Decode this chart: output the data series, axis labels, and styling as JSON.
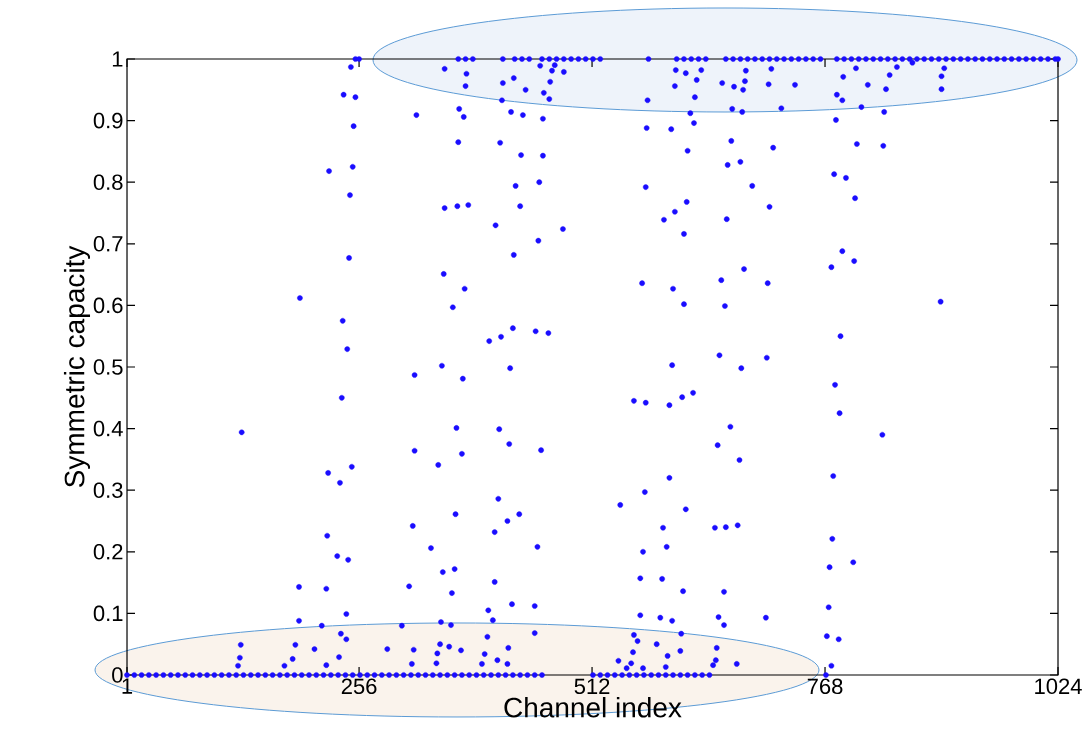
{
  "chart_data": {
    "type": "scatter",
    "xlabel": "Channel index",
    "ylabel": "Symmetric capacity",
    "xlim": [
      1,
      1024
    ],
    "ylim": [
      0,
      1
    ],
    "xticks": [
      1,
      256,
      512,
      768,
      1024
    ],
    "yticks": [
      0,
      0.1,
      0.2,
      0.3,
      0.4,
      0.5,
      0.6,
      0.7,
      0.8,
      0.9,
      1
    ],
    "marker": "circle",
    "series": [
      {
        "color": "#1a0dff",
        "x": [
          1,
          9,
          17,
          25,
          33,
          41,
          49,
          57,
          65,
          73,
          81,
          89,
          97,
          105,
          113,
          121,
          129,
          137,
          145,
          153,
          161,
          169,
          177,
          185,
          193,
          201,
          209,
          217,
          225,
          233,
          241,
          249,
          257,
          265,
          273,
          281,
          289,
          297,
          305,
          313,
          321,
          329,
          337,
          345,
          353,
          361,
          369,
          377,
          385,
          393,
          401,
          409,
          417,
          425,
          433,
          441,
          449,
          457,
          513,
          521,
          529,
          537,
          545,
          553,
          561,
          569,
          577,
          585,
          593,
          601,
          609,
          617,
          625,
          633,
          641,
          769
        ],
        "values": [
          0,
          0,
          0,
          0,
          0,
          0,
          0,
          0,
          0,
          0,
          0,
          0,
          0,
          0,
          0,
          0,
          0,
          0,
          0,
          0,
          0,
          0,
          0,
          0,
          0,
          0,
          0,
          0,
          0,
          0,
          0,
          0,
          0,
          0,
          0,
          0,
          0,
          0,
          0,
          0,
          0,
          0,
          0,
          0,
          0,
          0,
          0,
          0,
          0,
          0,
          0,
          0,
          0,
          0,
          0,
          0,
          0,
          0,
          0,
          0,
          0,
          0,
          0,
          0,
          0,
          0,
          0,
          0,
          0,
          0,
          0,
          0,
          0,
          0,
          0,
          0
        ]
      },
      {
        "color": "#1a0dff",
        "x": [
          252,
          256,
          365,
          373,
          381,
          414,
          427,
          435,
          443,
          457,
          465,
          473,
          481,
          489,
          497,
          505,
          513,
          521,
          574,
          605,
          613,
          621,
          629,
          637,
          659,
          667,
          675,
          683,
          691,
          699,
          707,
          715,
          723,
          731,
          739,
          747,
          755,
          763,
          781,
          789,
          797,
          805,
          813,
          821,
          829,
          837,
          845,
          853,
          861,
          869,
          877,
          885,
          893,
          901,
          909,
          917,
          925,
          933,
          941,
          949,
          957,
          965,
          973,
          981,
          989,
          997,
          1005,
          1013,
          1021,
          1024
        ],
        "values": [
          1,
          1,
          1,
          1,
          1,
          1,
          1,
          1,
          1,
          1,
          1,
          1,
          1,
          1,
          1,
          1,
          1,
          1,
          1,
          1,
          1,
          1,
          1,
          1,
          1,
          1,
          1,
          1,
          1,
          1,
          1,
          1,
          1,
          1,
          1,
          1,
          1,
          1,
          1,
          1,
          1,
          1,
          1,
          1,
          1,
          1,
          1,
          1,
          1,
          1,
          1,
          1,
          1,
          1,
          1,
          1,
          1,
          1,
          1,
          1,
          1,
          1,
          1,
          1,
          1,
          1,
          1,
          1,
          1,
          1
        ]
      },
      {
        "color": "#1a0dff",
        "x": [
          247,
          239,
          252,
          250,
          249,
          223,
          246,
          245,
          191,
          238,
          243,
          127,
          237,
          222,
          248,
          235,
          221,
          232,
          244,
          190,
          220,
          242,
          190,
          215,
          236,
          242,
          126,
          186,
          207,
          125,
          183,
          234,
          174,
          123,
          220,
          319,
          366,
          371,
          365,
          411,
          423,
          436,
          458,
          434,
          458,
          428,
          454,
          350,
          364,
          376,
          433,
          406,
          480,
          453,
          426,
          349,
          372,
          359,
          399,
          412,
          425,
          450,
          464,
          317,
          347,
          370,
          422,
          363,
          410,
          421,
          456,
          317,
          343,
          369,
          409,
          362,
          432,
          419,
          315,
          405,
          335,
          452,
          348,
          361,
          405,
          311,
          358,
          398,
          424,
          449,
          403,
          346,
          357,
          303,
          449,
          397,
          345,
          355,
          420,
          287,
          316,
          368,
          342,
          394,
          408,
          391,
          341,
          419,
          314,
          350,
          374,
          373,
          414,
          426,
          439,
          413,
          459,
          465,
          455,
          468,
          481,
          466,
          471,
          573,
          603,
          604,
          615,
          627,
          625,
          632,
          655,
          668,
          678,
          680,
          681,
          666,
          677,
          706,
          720,
          735,
          709,
          781,
          787,
          788,
          802,
          808,
          815,
          835,
          839,
          847,
          864,
          896,
          896,
          899,
          833,
          620,
          624,
          572,
          599,
          780,
          665,
          711,
          803,
          832,
          617,
          661,
          675,
          778,
          791,
          571,
          688,
          801,
          616,
          707,
          603,
          591,
          660,
          613,
          787,
          800,
          679,
          775,
          654,
          705,
          567,
          601,
          895,
          613,
          658,
          785,
          600,
          652,
          704,
          676,
          779,
          558,
          571,
          597,
          611,
          623,
          784,
          664,
          831,
          650,
          674,
          777,
          597,
          570,
          543,
          615,
          590,
          647,
          659,
          672,
          776,
          568,
          594,
          773,
          799,
          565,
          589,
          612,
          657,
          772,
          565,
          587,
          600,
          651,
          657,
          703,
          770,
          783,
          775,
          558,
          562,
          610,
          583,
          557,
          609,
          649,
          595,
          541,
          555,
          648,
          671,
          550,
          568,
          593,
          645
        ],
        "values": [
          0.987,
          0.942,
          0.938,
          0.891,
          0.825,
          0.818,
          0.779,
          0.677,
          0.612,
          0.575,
          0.529,
          0.394,
          0.45,
          0.328,
          0.338,
          0.312,
          0.226,
          0.193,
          0.187,
          0.143,
          0.14,
          0.099,
          0.088,
          0.08,
          0.067,
          0.058,
          0.049,
          0.049,
          0.042,
          0.028,
          0.026,
          0.029,
          0.015,
          0.015,
          0.016,
          0.909,
          0.919,
          0.906,
          0.865,
          0.864,
          0.914,
          0.909,
          0.903,
          0.844,
          0.843,
          0.794,
          0.8,
          0.758,
          0.761,
          0.763,
          0.761,
          0.73,
          0.724,
          0.705,
          0.682,
          0.651,
          0.627,
          0.597,
          0.542,
          0.549,
          0.563,
          0.558,
          0.555,
          0.487,
          0.502,
          0.481,
          0.498,
          0.401,
          0.399,
          0.375,
          0.365,
          0.364,
          0.341,
          0.359,
          0.286,
          0.261,
          0.261,
          0.25,
          0.242,
          0.232,
          0.206,
          0.208,
          0.167,
          0.172,
          0.151,
          0.144,
          0.133,
          0.105,
          0.115,
          0.112,
          0.089,
          0.086,
          0.081,
          0.08,
          0.068,
          0.062,
          0.05,
          0.046,
          0.044,
          0.042,
          0.041,
          0.04,
          0.035,
          0.034,
          0.024,
          0.018,
          0.019,
          0.018,
          0.018,
          0.984,
          0.976,
          0.956,
          0.961,
          0.969,
          0.95,
          0.933,
          0.945,
          0.935,
          0.989,
          0.981,
          0.979,
          0.963,
          0.99,
          0.933,
          0.956,
          0.982,
          0.977,
          0.966,
          0.938,
          0.982,
          0.961,
          0.955,
          0.95,
          0.964,
          0.981,
          0.919,
          0.914,
          0.959,
          0.92,
          0.958,
          0.984,
          0.942,
          0.933,
          0.971,
          0.985,
          0.922,
          0.958,
          0.951,
          0.974,
          0.987,
          0.994,
          0.951,
          0.972,
          0.985,
          0.914,
          0.912,
          0.896,
          0.888,
          0.886,
          0.901,
          0.867,
          0.856,
          0.862,
          0.859,
          0.851,
          0.828,
          0.833,
          0.813,
          0.807,
          0.792,
          0.794,
          0.774,
          0.768,
          0.76,
          0.752,
          0.739,
          0.74,
          0.716,
          0.688,
          0.672,
          0.659,
          0.662,
          0.641,
          0.636,
          0.636,
          0.627,
          0.606,
          0.602,
          0.599,
          0.55,
          0.503,
          0.519,
          0.515,
          0.498,
          0.471,
          0.445,
          0.442,
          0.438,
          0.451,
          0.458,
          0.425,
          0.403,
          0.39,
          0.373,
          0.349,
          0.323,
          0.32,
          0.297,
          0.276,
          0.269,
          0.239,
          0.239,
          0.24,
          0.243,
          0.221,
          0.2,
          0.208,
          0.175,
          0.183,
          0.157,
          0.156,
          0.136,
          0.135,
          0.11,
          0.097,
          0.093,
          0.088,
          0.094,
          0.081,
          0.093,
          0.063,
          0.058,
          0.015,
          0.065,
          0.055,
          0.067,
          0.05,
          0.037,
          0.039,
          0.044,
          0.031,
          0.023,
          0.019,
          0.024,
          0.018,
          0.011,
          0.011,
          0.013,
          0.016
        ]
      }
    ]
  }
}
